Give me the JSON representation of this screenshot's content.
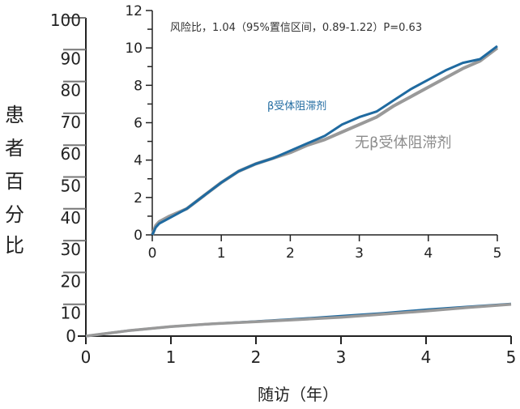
{
  "chart_data": [
    {
      "id": "main",
      "type": "line",
      "title": "",
      "xlabel": "随访（年）",
      "ylabel": "患者百分比",
      "xlim": [
        0,
        5
      ],
      "ylim": [
        0,
        100
      ],
      "x_ticks": [
        0,
        1,
        2,
        3,
        4,
        5
      ],
      "y_ticks": [
        0,
        10,
        20,
        30,
        40,
        50,
        60,
        70,
        80,
        90,
        100
      ],
      "grid": false,
      "series": [
        {
          "name": "β受体阻滞剂",
          "color": "#1f6aa0",
          "x": [
            0,
            0.5,
            1,
            1.5,
            2,
            2.5,
            3,
            3.5,
            4,
            4.5,
            5
          ],
          "values": [
            0,
            1.7,
            3.0,
            3.9,
            4.6,
            5.4,
            6.3,
            7.2,
            8.3,
            9.2,
            10.1
          ]
        },
        {
          "name": "无β受体阻滞剂",
          "color": "#999999",
          "x": [
            0,
            0.5,
            1,
            1.5,
            2,
            2.5,
            3,
            3.5,
            4,
            4.5,
            5
          ],
          "values": [
            0,
            1.7,
            3.0,
            3.9,
            4.5,
            5.2,
            5.9,
            6.9,
            7.9,
            9.0,
            10.0
          ]
        }
      ]
    },
    {
      "id": "inset",
      "type": "line",
      "title": "",
      "annotation": "风险比，1.04（95%置信区间，0.89-1.22）P=0.63",
      "xlim": [
        0,
        5
      ],
      "ylim": [
        0,
        12
      ],
      "x_ticks": [
        0,
        1,
        2,
        3,
        4,
        5
      ],
      "y_ticks": [
        0,
        2,
        4,
        6,
        8,
        10,
        12
      ],
      "y_minor_ticks": [
        1,
        3,
        5,
        7,
        9,
        11
      ],
      "grid": false,
      "legend": "inline labels",
      "series": [
        {
          "name": "β受体阻滞剂",
          "color": "#1f6aa0",
          "x": [
            0,
            0.05,
            0.1,
            0.25,
            0.5,
            0.75,
            1,
            1.25,
            1.5,
            1.75,
            2,
            2.25,
            2.5,
            2.75,
            3,
            3.25,
            3.5,
            3.75,
            4,
            4.25,
            4.5,
            4.75,
            5
          ],
          "values": [
            0,
            0.4,
            0.6,
            0.9,
            1.4,
            2.1,
            2.8,
            3.4,
            3.8,
            4.1,
            4.5,
            4.9,
            5.3,
            5.9,
            6.3,
            6.6,
            7.2,
            7.8,
            8.3,
            8.8,
            9.2,
            9.4,
            10.1
          ]
        },
        {
          "name": "无β受体阻滞剂",
          "color": "#999999",
          "x": [
            0,
            0.05,
            0.1,
            0.25,
            0.5,
            0.75,
            1,
            1.25,
            1.5,
            1.75,
            2,
            2.25,
            2.5,
            2.75,
            3,
            3.25,
            3.5,
            3.75,
            4,
            4.25,
            4.5,
            4.75,
            5
          ],
          "values": [
            0,
            0.5,
            0.7,
            1.0,
            1.4,
            2.1,
            2.8,
            3.4,
            3.8,
            4.1,
            4.4,
            4.8,
            5.1,
            5.5,
            5.9,
            6.3,
            6.9,
            7.4,
            7.9,
            8.4,
            8.9,
            9.3,
            10.0
          ]
        }
      ]
    }
  ],
  "labels": {
    "ylabel_chars": [
      "患",
      "者",
      "百",
      "分",
      "比"
    ],
    "xlabel": "随访（年）",
    "annotation": "风险比，1.04（95%置信区间，0.89-1.22）P=0.63",
    "series_blue": "β受体阻滞剂",
    "series_gray": "无β受体阻滞剂"
  },
  "colors": {
    "blue": "#1f6aa0",
    "gray": "#999999",
    "axis": "#222222"
  }
}
